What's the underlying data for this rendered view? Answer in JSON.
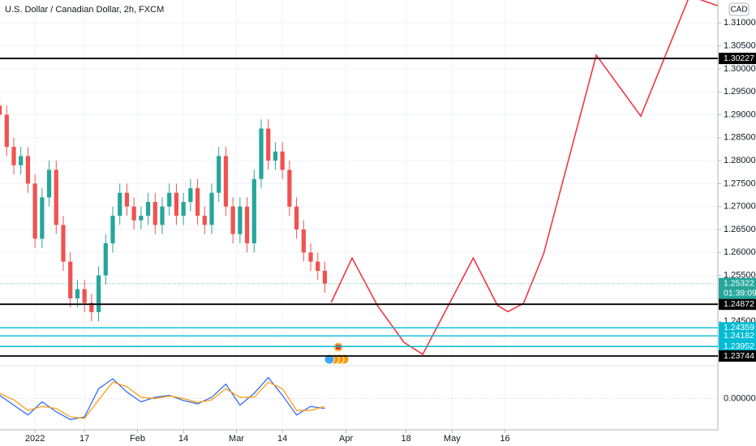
{
  "chart_data": {
    "type": "candlestick",
    "title": "U.S. Dollar / Canadian Dollar, 2h, FXCM",
    "currency": "CAD",
    "x": [
      -8,
      -6,
      -4,
      -2,
      0,
      2,
      4,
      6,
      8,
      10,
      12,
      14,
      16,
      18,
      20,
      22,
      24,
      26,
      28,
      30,
      32,
      34,
      36,
      38,
      40,
      42,
      44,
      46,
      48,
      50,
      52,
      54,
      56,
      58,
      60,
      62,
      64,
      66,
      68,
      70,
      72,
      74,
      76,
      78,
      80,
      82,
      84
    ],
    "open": [
      1.292,
      1.29,
      1.283,
      1.279,
      1.281,
      1.275,
      1.263,
      1.272,
      1.278,
      1.266,
      1.258,
      1.25,
      1.252,
      1.249,
      1.247,
      1.255,
      1.262,
      1.268,
      1.273,
      1.27,
      1.267,
      1.268,
      1.271,
      1.266,
      1.27,
      1.273,
      1.268,
      1.271,
      1.274,
      1.268,
      1.266,
      1.273,
      1.281,
      1.27,
      1.264,
      1.27,
      1.262,
      1.276,
      1.287,
      1.28,
      1.282,
      1.278,
      1.27,
      1.265,
      1.26,
      1.258,
      1.256
    ],
    "high": [
      1.294,
      1.292,
      1.285,
      1.283,
      1.283,
      1.277,
      1.274,
      1.28,
      1.28,
      1.268,
      1.26,
      1.254,
      1.254,
      1.251,
      1.257,
      1.264,
      1.27,
      1.275,
      1.275,
      1.272,
      1.27,
      1.273,
      1.273,
      1.272,
      1.275,
      1.275,
      1.273,
      1.276,
      1.276,
      1.27,
      1.275,
      1.283,
      1.283,
      1.272,
      1.272,
      1.272,
      1.278,
      1.289,
      1.289,
      1.284,
      1.284,
      1.28,
      1.272,
      1.267,
      1.262,
      1.26,
      1.258
    ],
    "low": [
      1.288,
      1.281,
      1.277,
      1.277,
      1.273,
      1.261,
      1.261,
      1.27,
      1.264,
      1.256,
      1.248,
      1.248,
      1.247,
      1.245,
      1.245,
      1.253,
      1.26,
      1.266,
      1.268,
      1.265,
      1.265,
      1.266,
      1.264,
      1.264,
      1.268,
      1.266,
      1.266,
      1.269,
      1.266,
      1.264,
      1.264,
      1.271,
      1.268,
      1.262,
      1.262,
      1.26,
      1.26,
      1.274,
      1.278,
      1.278,
      1.276,
      1.268,
      1.263,
      1.258,
      1.256,
      1.254,
      1.2512
    ],
    "close": [
      1.29,
      1.283,
      1.279,
      1.281,
      1.275,
      1.263,
      1.272,
      1.278,
      1.266,
      1.258,
      1.25,
      1.252,
      1.249,
      1.247,
      1.255,
      1.262,
      1.268,
      1.273,
      1.27,
      1.267,
      1.268,
      1.271,
      1.266,
      1.27,
      1.273,
      1.268,
      1.271,
      1.274,
      1.268,
      1.266,
      1.273,
      1.281,
      1.27,
      1.264,
      1.27,
      1.262,
      1.276,
      1.287,
      1.28,
      1.282,
      1.278,
      1.27,
      1.265,
      1.26,
      1.258,
      1.256,
      1.2532
    ],
    "up_color": "#26a69a",
    "down_color": "#ef5350",
    "grid": true,
    "xlim": [
      -7.9,
      195.2
    ],
    "xticks": [
      {
        "value": 2,
        "label": "2022"
      },
      {
        "value": 16,
        "label": "17"
      },
      {
        "value": 31,
        "label": "Feb"
      },
      {
        "value": 44,
        "label": "14"
      },
      {
        "value": 59,
        "label": "Mar"
      },
      {
        "value": 72,
        "label": "14"
      },
      {
        "value": 90,
        "label": "Apr"
      },
      {
        "value": 107,
        "label": "18"
      },
      {
        "value": 120,
        "label": "May"
      },
      {
        "value": 135,
        "label": "16"
      }
    ],
    "ylim": [
      1.2355,
      1.315
    ],
    "yticks": [
      {
        "value": 1.245,
        "label": "1.24500"
      },
      {
        "value": 1.25,
        "label": "1.25000"
      },
      {
        "value": 1.255,
        "label": "1.25500"
      },
      {
        "value": 1.26,
        "label": "1.26000"
      },
      {
        "value": 1.265,
        "label": "1.26500"
      },
      {
        "value": 1.27,
        "label": "1.27000"
      },
      {
        "value": 1.275,
        "label": "1.27500"
      },
      {
        "value": 1.28,
        "label": "1.28000"
      },
      {
        "value": 1.285,
        "label": "1.28500"
      },
      {
        "value": 1.29,
        "label": "1.29000"
      },
      {
        "value": 1.295,
        "label": "1.29500"
      },
      {
        "value": 1.3,
        "label": "1.30000"
      },
      {
        "value": 1.305,
        "label": "1.30500"
      },
      {
        "value": 1.31,
        "label": "1.31000"
      }
    ],
    "levels": [
      {
        "value": 1.30227,
        "color": "#000000"
      },
      {
        "value": 1.24872,
        "color": "#000000"
      },
      {
        "value": 1.24359,
        "color": "#00bcd4"
      },
      {
        "value": 1.24182,
        "color": "#00bcd4"
      },
      {
        "value": 1.23952,
        "color": "#00bcd4"
      },
      {
        "value": 1.23744,
        "color": "#000000"
      }
    ],
    "last_price": 1.25322,
    "countdown": "01:39:09",
    "last_color": "#26a69a",
    "projection": {
      "color": "#f23645",
      "x": [
        85.8,
        91.7,
        98.9,
        106.4,
        111.7,
        126.0,
        132.8,
        135.8,
        140.2,
        145.9,
        160.8,
        173.4,
        187.2,
        195.7
      ],
      "values": [
        1.2491,
        1.2588,
        1.2484,
        1.2404,
        1.2378,
        1.2588,
        1.2485,
        1.2471,
        1.2489,
        1.2597,
        1.303,
        1.2897,
        1.3159,
        1.3136
      ]
    },
    "oscillator": {
      "ylim": [
        -0.0045,
        0.0045
      ],
      "yticks": [
        {
          "value": 0,
          "label": "0.00000"
        }
      ],
      "x": [
        -8,
        -4,
        0,
        4,
        8,
        12,
        16,
        20,
        24,
        28,
        32,
        36,
        40,
        44,
        48,
        52,
        56,
        60,
        64,
        68,
        72,
        76,
        80,
        84
      ],
      "series": [
        {
          "color": "#2962ff",
          "values": [
            0.0005,
            -0.001,
            -0.0025,
            -0.0005,
            -0.002,
            -0.0032,
            -0.0028,
            0.0015,
            0.003,
            0.001,
            -0.0005,
            0.0002,
            0.0005,
            -0.0003,
            -0.0008,
            0.0002,
            0.0022,
            -0.001,
            0.0008,
            0.0032,
            0.0005,
            -0.0025,
            -0.0012,
            -0.0015
          ]
        },
        {
          "color": "#ff9800",
          "values": [
            0.0008,
            -0.0002,
            -0.0018,
            -0.0012,
            -0.0015,
            -0.0028,
            -0.003,
            -0.0002,
            0.0025,
            0.0018,
            0.0002,
            0,
            0.0004,
            0,
            -0.0006,
            -0.0002,
            0.0015,
            0.0002,
            0.0002,
            0.0025,
            0.0015,
            -0.0018,
            -0.0018,
            -0.0012
          ]
        }
      ]
    }
  }
}
